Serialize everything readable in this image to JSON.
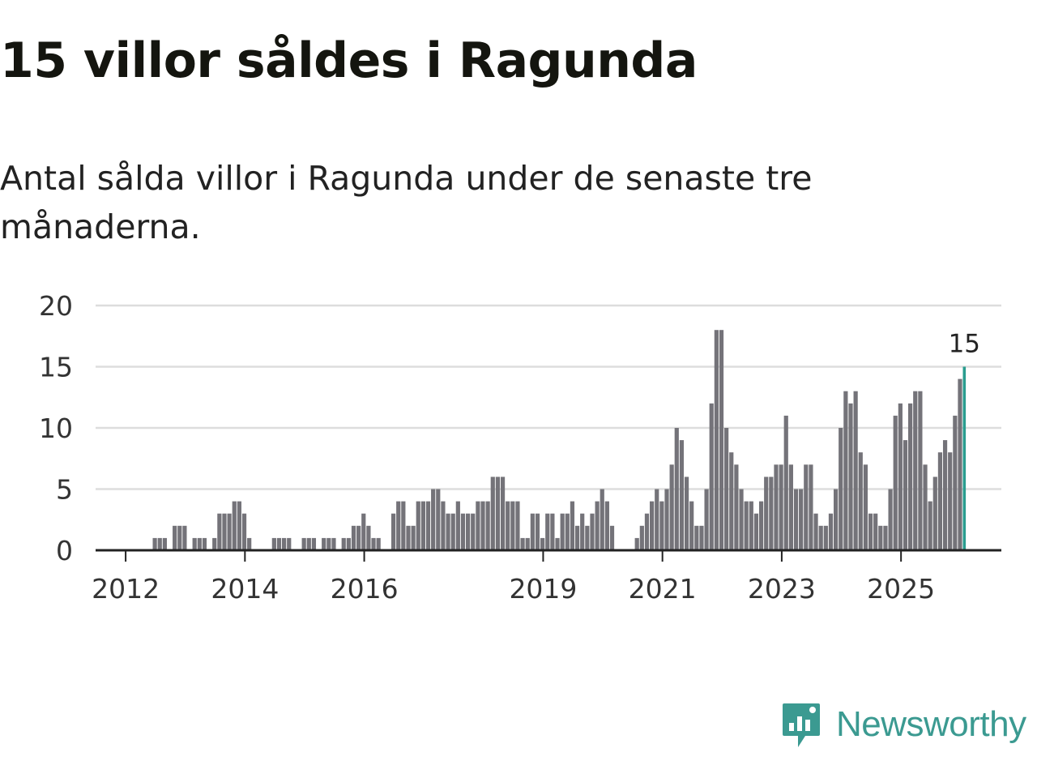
{
  "title": "15 villor såldes i Ragunda",
  "subtitle": "Antal sålda villor i Ragunda under de senaste tre månaderna.",
  "brand": {
    "name": "Newsworthy",
    "icon": "newsworthy-logo-icon",
    "color": "#3b9a91"
  },
  "colors": {
    "bar": "#747379",
    "highlight": "#2a9d8f",
    "grid": "#dddddd",
    "axis": "#222222"
  },
  "chart_data": {
    "type": "bar",
    "title": "15 villor såldes i Ragunda",
    "xlabel": "",
    "ylabel": "",
    "ylim": [
      0,
      20
    ],
    "yticks": [
      0,
      5,
      10,
      15,
      20
    ],
    "grid": true,
    "start_year": 2011,
    "start_month": 4,
    "xtick_years": [
      "2012",
      "2014",
      "2016",
      "2019",
      "2021",
      "2023",
      "2025"
    ],
    "highlight_label": "15",
    "values": [
      0,
      0,
      0,
      0,
      0,
      0,
      0,
      0,
      0,
      0,
      0,
      0,
      1,
      1,
      1,
      0,
      2,
      2,
      2,
      0,
      1,
      1,
      1,
      0,
      1,
      3,
      3,
      3,
      4,
      4,
      3,
      1,
      0,
      0,
      0,
      0,
      1,
      1,
      1,
      1,
      0,
      0,
      1,
      1,
      1,
      0,
      1,
      1,
      1,
      0,
      1,
      1,
      2,
      2,
      3,
      2,
      1,
      1,
      0,
      0,
      3,
      4,
      4,
      2,
      2,
      4,
      4,
      4,
      5,
      5,
      4,
      3,
      3,
      4,
      3,
      3,
      3,
      4,
      4,
      4,
      6,
      6,
      6,
      4,
      4,
      4,
      1,
      1,
      3,
      3,
      1,
      3,
      3,
      1,
      3,
      3,
      4,
      2,
      3,
      2,
      3,
      4,
      5,
      4,
      2,
      0,
      0,
      0,
      0,
      1,
      2,
      3,
      4,
      5,
      4,
      5,
      7,
      10,
      9,
      6,
      4,
      2,
      2,
      5,
      12,
      18,
      18,
      10,
      8,
      7,
      5,
      4,
      4,
      3,
      4,
      6,
      6,
      7,
      7,
      11,
      7,
      5,
      5,
      7,
      7,
      3,
      2,
      2,
      3,
      5,
      10,
      13,
      12,
      13,
      8,
      7,
      3,
      3,
      2,
      2,
      5,
      11,
      12,
      9,
      12,
      13,
      13,
      7,
      4,
      6,
      8,
      9,
      8,
      11,
      14,
      15
    ]
  }
}
